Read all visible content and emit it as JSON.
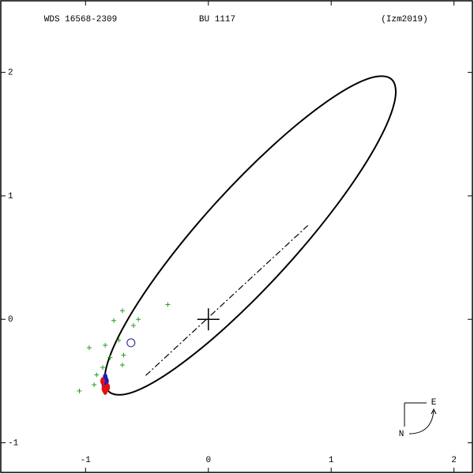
{
  "chart_data": {
    "type": "orbit",
    "title": "WDS 16568-2309",
    "subtitle": "BU 1117",
    "source": "(Izm2019)",
    "compass": {
      "east": "E",
      "north": "N"
    },
    "xlim": [
      -1.69,
      2.15
    ],
    "ylim": [
      -1.24,
      2.58
    ],
    "xticks": [
      -1,
      0,
      1,
      2
    ],
    "yticks": [
      2,
      1,
      0,
      -1
    ],
    "series": [
      {
        "style": "closed-curve",
        "color": "#000000",
        "x": [
          1.492,
          1.295,
          0.954,
          0.519,
          0.056,
          -0.363,
          -0.674,
          -0.831,
          -0.81,
          -0.613,
          -0.272,
          0.163,
          0.626,
          1.045,
          1.356,
          1.513
        ],
        "values": [
          1.944,
          1.947,
          1.756,
          1.402,
          0.938,
          0.434,
          -0.032,
          -0.391,
          -0.586,
          -0.589,
          -0.398,
          -0.044,
          0.42,
          0.924,
          1.39,
          1.749
        ]
      },
      {
        "style": "dash-dot",
        "color": "#000000",
        "x": [
          -0.51,
          0.81
        ],
        "values": [
          -0.455,
          0.76
        ]
      },
      {
        "style": "plus",
        "color": "#22a022",
        "x": [
          -0.7,
          -0.33,
          -0.57,
          -0.77,
          -0.84,
          -0.97,
          -0.73,
          -0.8,
          -0.7,
          -0.91,
          -1.05,
          -0.93,
          -0.69,
          -0.86,
          -0.61
        ],
        "values": [
          0.07,
          0.12,
          0.0,
          -0.01,
          -0.21,
          -0.23,
          -0.17,
          -0.31,
          -0.37,
          -0.45,
          -0.58,
          -0.53,
          -0.29,
          -0.39,
          -0.05
        ]
      },
      {
        "style": "circle",
        "color": "#1a1aa0",
        "x": [
          -0.63
        ],
        "values": [
          -0.19
        ]
      },
      {
        "style": "dot",
        "color": "#1a1ac8",
        "x": [
          -0.84,
          -0.83,
          -0.85
        ],
        "values": [
          -0.47,
          -0.5,
          -0.53
        ]
      },
      {
        "style": "dot",
        "color": "#e01010",
        "x": [
          -0.85,
          -0.82,
          -0.86,
          -0.84
        ],
        "values": [
          -0.56,
          -0.55,
          -0.5,
          -0.58
        ]
      },
      {
        "style": "big-cross",
        "color": "#000000",
        "x": [
          0
        ],
        "values": [
          0
        ]
      }
    ]
  }
}
